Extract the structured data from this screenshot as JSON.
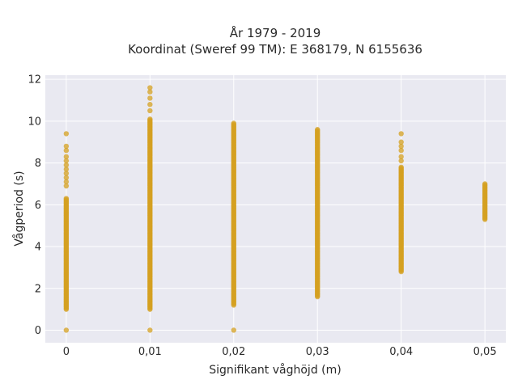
{
  "chart_data": {
    "type": "scatter",
    "title": "År 1979 - 2019",
    "subtitle": "Koordinat (Sweref 99 TM): E 368179, N 6155636",
    "xlabel": "Signifikant våghöjd (m)",
    "ylabel": "Vågperiod (s)",
    "xlim": [
      -0.0025,
      0.0525
    ],
    "ylim": [
      -0.6,
      12.2
    ],
    "x_ticks": [
      0,
      0.01,
      0.02,
      0.03,
      0.04,
      0.05
    ],
    "x_tick_labels": [
      "0",
      "0,01",
      "0,02",
      "0,03",
      "0,04",
      "0,05"
    ],
    "y_ticks": [
      0,
      2,
      4,
      6,
      8,
      10,
      12
    ],
    "y_tick_labels": [
      "0",
      "2",
      "4",
      "6",
      "8",
      "10",
      "12"
    ],
    "grid": true,
    "point_color": "#d4a020",
    "background_color": "#e9e9f1",
    "grid_color": "#ffffff",
    "series": [
      {
        "x": 0,
        "y_min": 1.0,
        "y_max": 6.3,
        "extra_y": [
          0,
          6.9,
          7.1,
          7.3,
          7.5,
          7.7,
          7.9,
          8.1,
          8.3,
          8.6,
          8.8,
          9.4
        ]
      },
      {
        "x": 0.01,
        "y_min": 1.0,
        "y_max": 10.1,
        "extra_y": [
          0,
          10.5,
          10.8,
          11.1,
          11.4,
          11.6
        ]
      },
      {
        "x": 0.02,
        "y_min": 1.2,
        "y_max": 9.9,
        "extra_y": [
          0
        ]
      },
      {
        "x": 0.03,
        "y_min": 1.6,
        "y_max": 9.6,
        "extra_y": []
      },
      {
        "x": 0.04,
        "y_min": 2.8,
        "y_max": 7.8,
        "extra_y": [
          8.1,
          8.3,
          8.6,
          8.8,
          9.0,
          9.4
        ]
      },
      {
        "x": 0.05,
        "y_min": 5.3,
        "y_max": 7.0,
        "extra_y": []
      }
    ]
  }
}
